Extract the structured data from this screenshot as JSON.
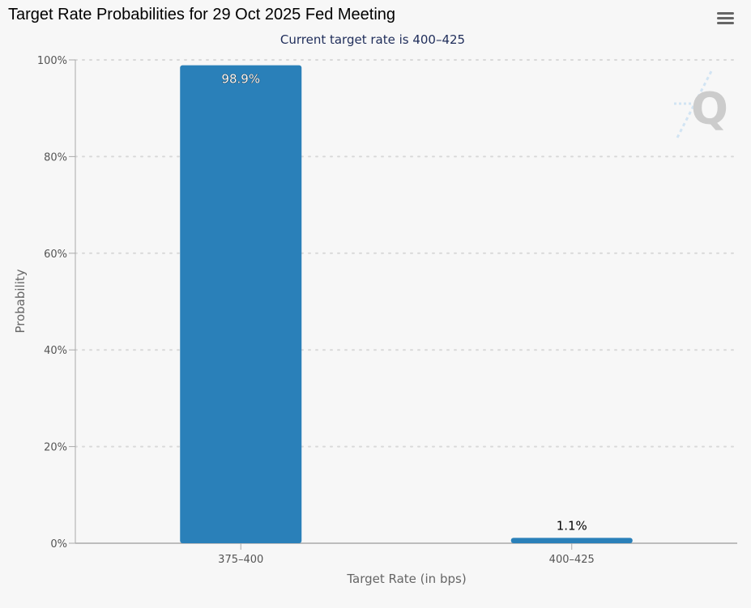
{
  "page": {
    "title": "Target Rate Probabilities for 29 Oct 2025 Fed Meeting",
    "subtitle": "Current target rate is 400–425"
  },
  "menu": {
    "icon": "hamburger-menu-icon"
  },
  "watermark": {
    "icon": "q-logo-icon",
    "text": "Q"
  },
  "colors": {
    "bar": "#2a80b9",
    "background": "#f7f7f7",
    "grid": "#d9d9d9",
    "axis": "#aaaaaa",
    "text": "#666666"
  },
  "chart_data": {
    "type": "bar",
    "title": "Target Rate Probabilities for 29 Oct 2025 Fed Meeting",
    "subtitle": "Current target rate is 400–425",
    "categories": [
      "375–400",
      "400–425"
    ],
    "values": [
      98.9,
      1.1
    ],
    "data_labels": [
      "98.9%",
      "1.1%"
    ],
    "xlabel": "Target Rate (in bps)",
    "ylabel": "Probability",
    "ylim": [
      0,
      100
    ],
    "yticks": [
      0,
      20,
      40,
      60,
      80,
      100
    ],
    "ytick_labels": [
      "0%",
      "20%",
      "40%",
      "60%",
      "80%",
      "100%"
    ],
    "grid": true,
    "legend": "none"
  }
}
